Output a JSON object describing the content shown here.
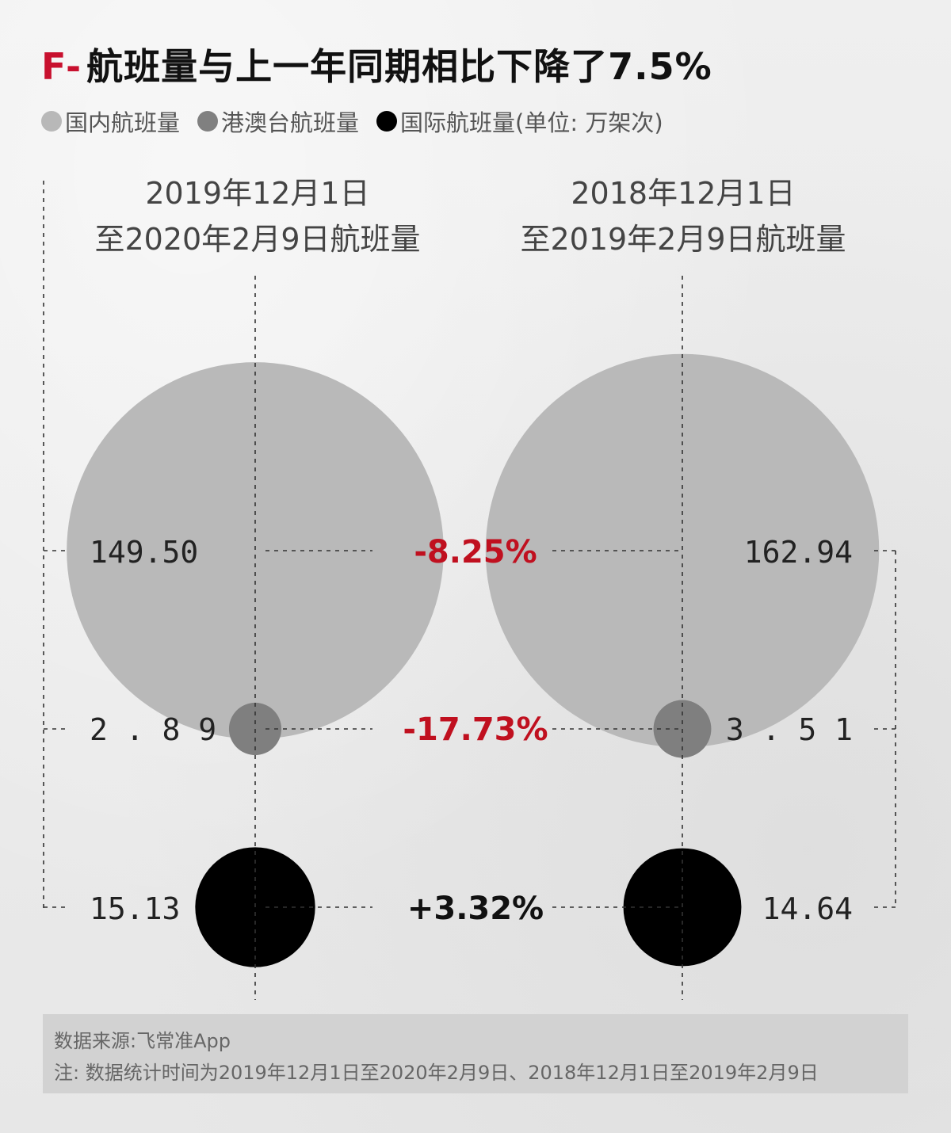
{
  "title": {
    "prefix": "F-",
    "text": "航班量与上一年同期相比下降了7.5%"
  },
  "legend": [
    {
      "label": "国内航班量",
      "color": "#b8b8b8",
      "icon": "light-gray-dot-icon"
    },
    {
      "label": "港澳台航班量",
      "color": "#808080",
      "icon": "gray-dot-icon"
    },
    {
      "label": "国际航班量(单位: 万架次)",
      "color": "#000000",
      "icon": "black-dot-icon"
    }
  ],
  "colors": {
    "domestic": "#b9b9b9",
    "hmt": "#7f7f7f",
    "international": "#000000",
    "decrease": "#c0101f",
    "increase": "#111111"
  },
  "chart_data": {
    "type": "bubble",
    "unit": "万架次",
    "periods": [
      {
        "label_line1": "2019年12月1日",
        "label_line2": "至2020年2月9日航班量"
      },
      {
        "label_line1": "2018年12月1日",
        "label_line2": "至2019年2月9日航班量"
      }
    ],
    "series": [
      {
        "name": "国内航班量",
        "values": [
          149.5,
          162.94
        ],
        "labels": [
          "149.50",
          "162.94"
        ],
        "change": "-8.25%"
      },
      {
        "name": "港澳台航班量",
        "values": [
          2.89,
          3.51
        ],
        "labels": [
          "2 . 8 9",
          "3 . 5 1"
        ],
        "change": "-17.73%"
      },
      {
        "name": "国际航班量",
        "values": [
          15.13,
          14.64
        ],
        "labels": [
          "15.13",
          "14.64"
        ],
        "change": "+3.32%"
      }
    ]
  },
  "footer": {
    "source": "数据来源:飞常准App",
    "note": "注: 数据统计时间为2019年12月1日至2020年2月9日、2018年12月1日至2019年2月9日"
  }
}
